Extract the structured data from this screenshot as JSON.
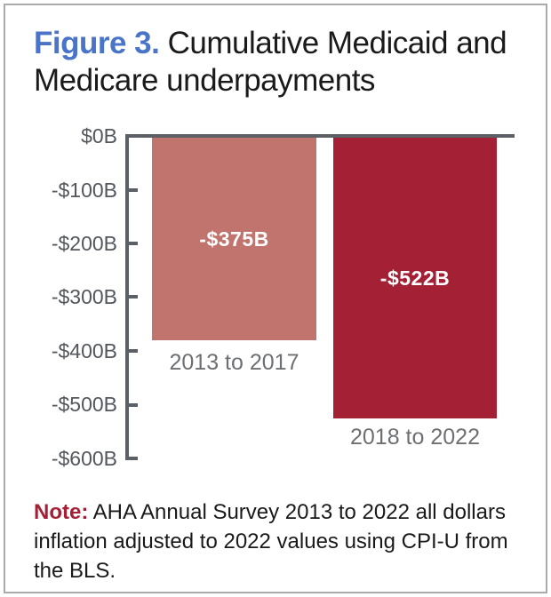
{
  "page": {
    "title": {
      "figure_label": "Figure 3.",
      "text": "Cumulative Medicaid and Medicare underpayments"
    },
    "note": {
      "label": "Note:",
      "text": "AHA Annual Survey 2013 to 2022 all dollars inflation adjusted to 2022 values using CPI-U from the BLS."
    }
  },
  "colors": {
    "figure_label_blue": "#4a74c8",
    "bar_2013_2017": "#c1736d",
    "bar_2018_2022": "#a32035",
    "axis_gray": "#5b5f66",
    "ytick_label_gray": "#53565c",
    "category_label_gray": "#6d6f73",
    "note_label_red": "#a32035",
    "bar_value_text": "#ffffff"
  },
  "chart_data": {
    "type": "bar",
    "title": "Figure 3. Cumulative Medicaid and Medicare underpayments",
    "categories": [
      "2013 to 2017",
      "2018 to 2022"
    ],
    "values": [
      -375,
      -522
    ],
    "bar_labels": [
      "-$375B",
      "-$522B"
    ],
    "unit": "billions of dollars",
    "xlabel": "",
    "ylabel": "",
    "ylim": [
      -600,
      0
    ],
    "ytick_values": [
      0,
      -100,
      -200,
      -300,
      -400,
      -500,
      -600
    ],
    "ytick_labels": [
      "$0B",
      "-$100B",
      "-$200B",
      "-$300B",
      "-$400B",
      "-$500B",
      "-$600B"
    ],
    "grid": false,
    "legend": false
  }
}
